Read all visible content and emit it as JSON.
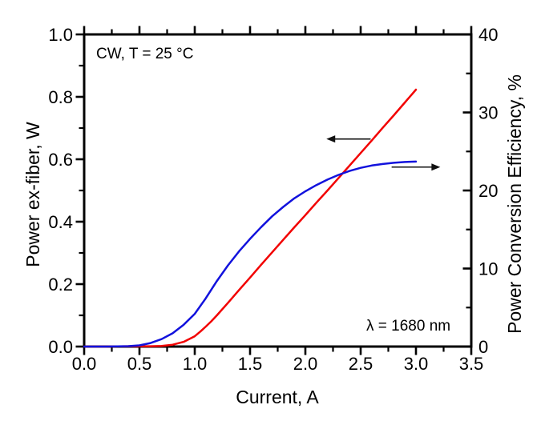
{
  "chart_data": {
    "type": "line",
    "title": "",
    "xlabel": "Current, A",
    "ylabel_left": "Power ex-fiber, W",
    "ylabel_right": "Power Conversion Efficiency, %",
    "xlim": [
      0.0,
      3.5
    ],
    "ylim_left": [
      0.0,
      1.0
    ],
    "ylim_right": [
      0,
      40
    ],
    "grid": false,
    "legend": "none",
    "x_major_ticks": [
      0.0,
      0.5,
      1.0,
      1.5,
      2.0,
      2.5,
      3.0,
      3.5
    ],
    "x_major_tick_labels": [
      "0.0",
      "0.5",
      "1.0",
      "1.5",
      "2.0",
      "2.5",
      "3.0",
      "3.5"
    ],
    "x_minor_ticks": [
      0.25,
      0.75,
      1.25,
      1.75,
      2.25,
      2.75,
      3.25
    ],
    "y_left_major_ticks": [
      0.0,
      0.2,
      0.4,
      0.6,
      0.8,
      1.0
    ],
    "y_left_major_tick_labels": [
      "0.0",
      "0.2",
      "0.4",
      "0.6",
      "0.8",
      "1.0"
    ],
    "y_left_minor_ticks": [
      0.1,
      0.3,
      0.5,
      0.7,
      0.9
    ],
    "y_right_major_ticks": [
      0,
      10,
      20,
      30,
      40
    ],
    "y_right_major_tick_labels": [
      "0",
      "10",
      "20",
      "30",
      "40"
    ],
    "y_right_minor_ticks": [
      5,
      15,
      25,
      35
    ],
    "annotations": {
      "condition": "CW, T = 25 °C",
      "wavelength": "λ = 1680 nm"
    },
    "series": [
      {
        "id": "power",
        "name": "Power ex-fiber",
        "axis": "left",
        "color": "#f20202",
        "x": [
          0,
          0.2,
          0.4,
          0.5,
          0.6,
          0.7,
          0.8,
          0.9,
          1.0,
          1.05,
          1.1,
          1.15,
          1.2,
          1.3,
          1.4,
          1.5,
          1.6,
          1.7,
          1.8,
          1.9,
          2.0,
          2.1,
          2.2,
          2.3,
          2.4,
          2.5,
          2.6,
          2.7,
          2.8,
          2.9,
          3.0
        ],
        "values": [
          0,
          0,
          0.001,
          0.001,
          0.001,
          0.002,
          0.006,
          0.015,
          0.033,
          0.048,
          0.064,
          0.081,
          0.1,
          0.14,
          0.181,
          0.221,
          0.262,
          0.302,
          0.342,
          0.382,
          0.421,
          0.461,
          0.5,
          0.54,
          0.58,
          0.62,
          0.66,
          0.701,
          0.741,
          0.782,
          0.823
        ]
      },
      {
        "id": "efficiency",
        "name": "Power Conversion Efficiency",
        "axis": "right",
        "color": "#1212dd",
        "x": [
          0,
          0.2,
          0.4,
          0.5,
          0.6,
          0.7,
          0.8,
          0.9,
          1.0,
          1.1,
          1.2,
          1.3,
          1.4,
          1.5,
          1.6,
          1.7,
          1.8,
          1.9,
          2.0,
          2.1,
          2.2,
          2.3,
          2.4,
          2.5,
          2.6,
          2.7,
          2.8,
          2.9,
          3.0
        ],
        "values": [
          0,
          0,
          0.05,
          0.15,
          0.45,
          0.95,
          1.7,
          2.8,
          4.2,
          6.2,
          8.4,
          10.4,
          12.2,
          13.8,
          15.3,
          16.7,
          17.9,
          19.0,
          19.9,
          20.7,
          21.4,
          22.0,
          22.5,
          22.9,
          23.2,
          23.4,
          23.55,
          23.65,
          23.7
        ]
      }
    ],
    "axis_arrows": [
      {
        "series": "power",
        "axis": "left",
        "direction": "left",
        "at_value": 0.665,
        "from_current": 2.59,
        "to_current": 2.19
      },
      {
        "series": "efficiency",
        "axis": "right",
        "direction": "right",
        "at_value": 23.0,
        "from_current": 2.78,
        "to_current": 3.22
      }
    ],
    "frame_color": "#000000",
    "arrow_color": "#111111"
  }
}
